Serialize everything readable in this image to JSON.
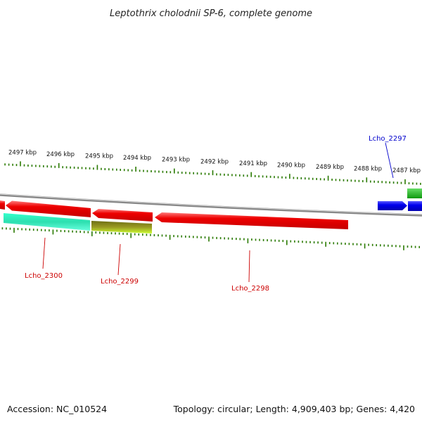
{
  "title": "Leptothrix cholodnii SP-6, complete genome",
  "footer": {
    "accession": "Accession: NC_010524",
    "summary": "Topology: circular; Length: 4,909,403 bp; Genes: 4,420"
  },
  "ticks": [
    "2497 kbp",
    "2496 kbp",
    "2495 kbp",
    "2494 kbp",
    "2493 kbp",
    "2492 kbp",
    "2491 kbp",
    "2490 kbp",
    "2489 kbp",
    "2488 kbp",
    "2487 kbp"
  ],
  "genes": [
    {
      "id": "Lcho_2300",
      "label": "Lcho_2300",
      "color": "#cc0000"
    },
    {
      "id": "Lcho_2299",
      "label": "Lcho_2299",
      "color": "#cc0000"
    },
    {
      "id": "Lcho_2298",
      "label": "Lcho_2298",
      "color": "#cc0000"
    },
    {
      "id": "Lcho_2297",
      "label": "Lcho_2297",
      "color": "#0000cc"
    }
  ],
  "colors": {
    "cds_reverse": "#ee0000",
    "cds_forward": "#0000ee",
    "cog_teal": "#33ffcc",
    "cog_olive": "#8a8a1e",
    "cog_green": "#22bb22",
    "backbone": "#888888",
    "tick": "#2a7a00"
  }
}
